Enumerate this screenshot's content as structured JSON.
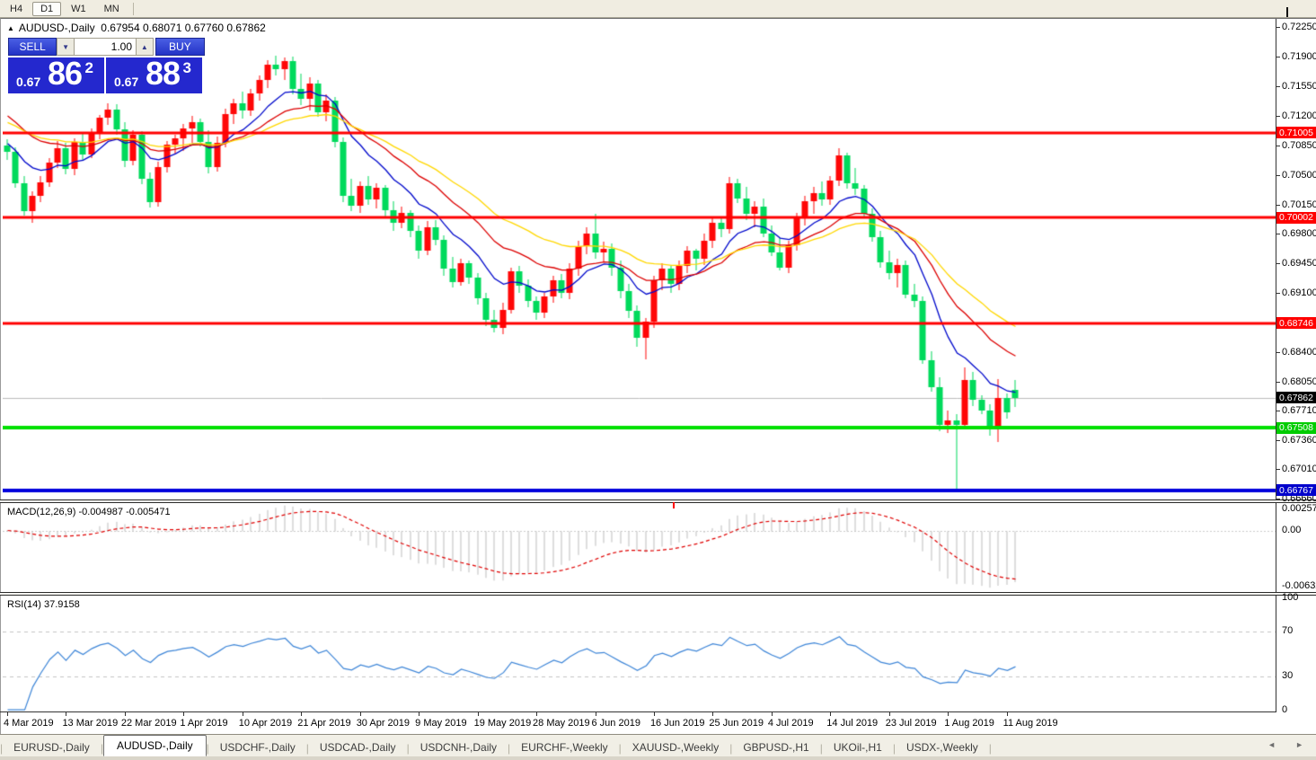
{
  "toolbar": {
    "timeframes": [
      "H4",
      "D1",
      "W1",
      "MN"
    ],
    "active": "D1"
  },
  "chart": {
    "symbol_marker": "▲",
    "title": "AUDUSD-,Daily",
    "ohlc_display": "0.67954 0.68071 0.67760 0.67862"
  },
  "one_click": {
    "sell_label": "SELL",
    "buy_label": "BUY",
    "volume": "1.00",
    "sell_price": {
      "small": "0.67",
      "big": "86",
      "sup": "2"
    },
    "buy_price": {
      "small": "0.67",
      "big": "88",
      "sup": "3"
    }
  },
  "icons": {
    "spin_up": "▲",
    "spin_down": "▼",
    "tab_scroll_left": "◄",
    "tab_scroll_right": "►"
  },
  "chart_data": {
    "type": "candlestick",
    "symbol": "AUDUSD",
    "timeframe": "Daily",
    "colors": {
      "up": "#ff0707",
      "down": "#00da5c",
      "ma_fast": "#0008cc",
      "ma_mid": "#dd0000",
      "ma_slow": "#ffd800"
    },
    "x_labels": [
      "4 Mar 2019",
      "13 Mar 2019",
      "22 Mar 2019",
      "1 Apr 2019",
      "10 Apr 2019",
      "21 Apr 2019",
      "30 Apr 2019",
      "9 May 2019",
      "19 May 2019",
      "28 May 2019",
      "6 Jun 2019",
      "16 Jun 2019",
      "25 Jun 2019",
      "4 Jul 2019",
      "14 Jul 2019",
      "23 Jul 2019",
      "1 Aug 2019",
      "11 Aug 2019"
    ],
    "label_every": 7,
    "candles": [
      [
        0.7085,
        0.7093,
        0.7068,
        0.7078
      ],
      [
        0.7078,
        0.7083,
        0.7035,
        0.7041
      ],
      [
        0.7041,
        0.7049,
        0.7002,
        0.7008
      ],
      [
        0.7008,
        0.7031,
        0.6994,
        0.7026
      ],
      [
        0.7026,
        0.7049,
        0.7018,
        0.7042
      ],
      [
        0.7042,
        0.7071,
        0.7036,
        0.7065
      ],
      [
        0.7065,
        0.7091,
        0.7059,
        0.7082
      ],
      [
        0.7082,
        0.7089,
        0.7051,
        0.7058
      ],
      [
        0.7058,
        0.7094,
        0.705,
        0.709
      ],
      [
        0.709,
        0.7099,
        0.7067,
        0.7075
      ],
      [
        0.7075,
        0.7106,
        0.707,
        0.71
      ],
      [
        0.71,
        0.7122,
        0.7093,
        0.7118
      ],
      [
        0.7118,
        0.7135,
        0.711,
        0.7128
      ],
      [
        0.7128,
        0.7134,
        0.7098,
        0.7105
      ],
      [
        0.7105,
        0.7113,
        0.706,
        0.7067
      ],
      [
        0.7067,
        0.7103,
        0.7062,
        0.7098
      ],
      [
        0.7098,
        0.7102,
        0.704,
        0.7046
      ],
      [
        0.7046,
        0.7054,
        0.7012,
        0.7018
      ],
      [
        0.7018,
        0.7066,
        0.7013,
        0.706
      ],
      [
        0.706,
        0.7091,
        0.7054,
        0.7086
      ],
      [
        0.7086,
        0.7098,
        0.7076,
        0.7094
      ],
      [
        0.7094,
        0.7111,
        0.7079,
        0.7106
      ],
      [
        0.7106,
        0.7121,
        0.7089,
        0.7113
      ],
      [
        0.7113,
        0.7117,
        0.7084,
        0.709
      ],
      [
        0.709,
        0.7104,
        0.7052,
        0.706
      ],
      [
        0.706,
        0.7096,
        0.7055,
        0.7089
      ],
      [
        0.7089,
        0.7129,
        0.7083,
        0.7123
      ],
      [
        0.7123,
        0.7141,
        0.7111,
        0.7136
      ],
      [
        0.7136,
        0.7149,
        0.7117,
        0.7127
      ],
      [
        0.7127,
        0.7153,
        0.7121,
        0.7147
      ],
      [
        0.7147,
        0.7169,
        0.7139,
        0.7163
      ],
      [
        0.7163,
        0.7187,
        0.7154,
        0.7181
      ],
      [
        0.7181,
        0.7192,
        0.7168,
        0.7176
      ],
      [
        0.7176,
        0.719,
        0.7163,
        0.7186
      ],
      [
        0.7186,
        0.7191,
        0.7146,
        0.7153
      ],
      [
        0.7153,
        0.7171,
        0.7133,
        0.7141
      ],
      [
        0.7141,
        0.7166,
        0.7127,
        0.7159
      ],
      [
        0.7159,
        0.7163,
        0.7119,
        0.7125
      ],
      [
        0.7125,
        0.7146,
        0.7114,
        0.7139
      ],
      [
        0.7139,
        0.7143,
        0.7083,
        0.709
      ],
      [
        0.709,
        0.7095,
        0.7018,
        0.7026
      ],
      [
        0.7026,
        0.7046,
        0.7008,
        0.7014
      ],
      [
        0.7014,
        0.7043,
        0.7006,
        0.7038
      ],
      [
        0.7038,
        0.7049,
        0.7015,
        0.7021
      ],
      [
        0.7021,
        0.7041,
        0.7011,
        0.7035
      ],
      [
        0.7035,
        0.7039,
        0.7001,
        0.7009
      ],
      [
        0.7009,
        0.7019,
        0.6984,
        0.6994
      ],
      [
        0.6994,
        0.7013,
        0.6987,
        0.7006
      ],
      [
        0.7006,
        0.7009,
        0.6977,
        0.6984
      ],
      [
        0.6984,
        0.6991,
        0.6951,
        0.6961
      ],
      [
        0.6961,
        0.6996,
        0.6956,
        0.6989
      ],
      [
        0.6989,
        0.6997,
        0.6967,
        0.6974
      ],
      [
        0.6974,
        0.6979,
        0.6931,
        0.6939
      ],
      [
        0.6939,
        0.6953,
        0.6917,
        0.6924
      ],
      [
        0.6924,
        0.6951,
        0.6919,
        0.6946
      ],
      [
        0.6946,
        0.6949,
        0.6921,
        0.6929
      ],
      [
        0.6929,
        0.6934,
        0.6897,
        0.6904
      ],
      [
        0.6904,
        0.6911,
        0.6871,
        0.6879
      ],
      [
        0.6879,
        0.6891,
        0.6864,
        0.6869
      ],
      [
        0.6869,
        0.6899,
        0.6862,
        0.6891
      ],
      [
        0.6891,
        0.6941,
        0.6886,
        0.6936
      ],
      [
        0.6936,
        0.6943,
        0.6911,
        0.6919
      ],
      [
        0.6919,
        0.6927,
        0.6894,
        0.6901
      ],
      [
        0.6901,
        0.6906,
        0.6879,
        0.6887
      ],
      [
        0.6887,
        0.6911,
        0.6881,
        0.6906
      ],
      [
        0.6906,
        0.6931,
        0.6899,
        0.6926
      ],
      [
        0.6926,
        0.6933,
        0.6904,
        0.6911
      ],
      [
        0.6911,
        0.6946,
        0.6903,
        0.6939
      ],
      [
        0.6939,
        0.6973,
        0.6931,
        0.6966
      ],
      [
        0.6966,
        0.6989,
        0.6957,
        0.6981
      ],
      [
        0.6981,
        0.7005,
        0.6951,
        0.6959
      ],
      [
        0.6959,
        0.6971,
        0.6947,
        0.6963
      ],
      [
        0.6963,
        0.6969,
        0.6931,
        0.6941
      ],
      [
        0.6941,
        0.6949,
        0.6904,
        0.6913
      ],
      [
        0.6913,
        0.6921,
        0.6881,
        0.6889
      ],
      [
        0.6889,
        0.6896,
        0.6847,
        0.6857
      ],
      [
        0.6857,
        0.6881,
        0.6832,
        0.6877
      ],
      [
        0.6877,
        0.6931,
        0.6869,
        0.6926
      ],
      [
        0.6926,
        0.6946,
        0.6914,
        0.6939
      ],
      [
        0.6939,
        0.6943,
        0.6911,
        0.6921
      ],
      [
        0.6921,
        0.6949,
        0.6914,
        0.6943
      ],
      [
        0.6943,
        0.6966,
        0.6934,
        0.6961
      ],
      [
        0.6961,
        0.6963,
        0.6937,
        0.6951
      ],
      [
        0.6951,
        0.6981,
        0.6944,
        0.6973
      ],
      [
        0.6973,
        0.6999,
        0.6964,
        0.6994
      ],
      [
        0.6994,
        0.7001,
        0.6977,
        0.6986
      ],
      [
        0.6986,
        0.7048,
        0.6981,
        0.7041
      ],
      [
        0.7041,
        0.7046,
        0.7017,
        0.7023
      ],
      [
        0.7023,
        0.7036,
        0.6997,
        0.7004
      ],
      [
        0.7004,
        0.7019,
        0.6989,
        0.7013
      ],
      [
        0.7013,
        0.7023,
        0.6977,
        0.6981
      ],
      [
        0.6981,
        0.6991,
        0.6954,
        0.6959
      ],
      [
        0.6959,
        0.6976,
        0.6937,
        0.6941
      ],
      [
        0.6941,
        0.6973,
        0.6934,
        0.6967
      ],
      [
        0.6967,
        0.7006,
        0.6961,
        0.6999
      ],
      [
        0.6999,
        0.7026,
        0.6991,
        0.7019
      ],
      [
        0.7019,
        0.7036,
        0.7004,
        0.7029
      ],
      [
        0.7029,
        0.7043,
        0.7014,
        0.7021
      ],
      [
        0.7021,
        0.7049,
        0.7015,
        0.7044
      ],
      [
        0.7044,
        0.7082,
        0.7037,
        0.7074
      ],
      [
        0.7074,
        0.7077,
        0.7034,
        0.7041
      ],
      [
        0.7041,
        0.7059,
        0.7027,
        0.7034
      ],
      [
        0.7034,
        0.7039,
        0.6999,
        0.7004
      ],
      [
        0.7004,
        0.7011,
        0.6971,
        0.6977
      ],
      [
        0.6977,
        0.6984,
        0.6941,
        0.6947
      ],
      [
        0.6947,
        0.6961,
        0.6927,
        0.6934
      ],
      [
        0.6934,
        0.6951,
        0.6917,
        0.6944
      ],
      [
        0.6944,
        0.6949,
        0.6904,
        0.6909
      ],
      [
        0.6909,
        0.6921,
        0.6894,
        0.6901
      ],
      [
        0.6901,
        0.6907,
        0.6827,
        0.6831
      ],
      [
        0.6831,
        0.6841,
        0.6794,
        0.6799
      ],
      [
        0.6799,
        0.6811,
        0.6747,
        0.6754
      ],
      [
        0.6754,
        0.6771,
        0.6745,
        0.6759
      ],
      [
        0.6759,
        0.6767,
        0.6677,
        0.6754
      ],
      [
        0.6754,
        0.6822,
        0.6749,
        0.6807
      ],
      [
        0.6807,
        0.6817,
        0.6777,
        0.6784
      ],
      [
        0.6784,
        0.6789,
        0.6767,
        0.6771
      ],
      [
        0.6771,
        0.6779,
        0.6741,
        0.6751
      ],
      [
        0.6751,
        0.6809,
        0.6734,
        0.6786
      ],
      [
        0.6786,
        0.6791,
        0.6762,
        0.6769
      ],
      [
        0.67954,
        0.68071,
        0.6776,
        0.67862
      ]
    ],
    "moving_averages": [
      {
        "period": 10,
        "color": "#0008cc",
        "seed": 0.709
      },
      {
        "period": 20,
        "color": "#dd0000",
        "seed": 0.7125
      },
      {
        "period": 32,
        "color": "#ffd800",
        "seed": 0.7115
      }
    ],
    "hlines": [
      {
        "price": 0.71005,
        "color": "#ff0000",
        "width": 3
      },
      {
        "price": 0.70002,
        "color": "#ff0000",
        "width": 3
      },
      {
        "price": 0.68746,
        "color": "#ff0000",
        "width": 3
      },
      {
        "price": 0.67508,
        "color": "#00e000",
        "width": 4
      },
      {
        "price": 0.66767,
        "color": "#0000dd",
        "width": 4
      }
    ],
    "current_price_line": {
      "price": 0.67862,
      "color": "#bdbdbd"
    },
    "price_axis": {
      "ticks": [
        "0.72250",
        "0.71900",
        "0.71550",
        "0.71200",
        "0.70850",
        "0.70500",
        "0.70150",
        "0.69800",
        "0.69450",
        "0.69100",
        "0.68400",
        "0.68050",
        "0.67710",
        "0.67360",
        "0.67010",
        "0.66660"
      ],
      "chips": [
        {
          "text": "0.71005",
          "bg": "#ff0000"
        },
        {
          "text": "0.70002",
          "bg": "#ff0000"
        },
        {
          "text": "0.68746",
          "bg": "#ff0000"
        },
        {
          "text": "0.67862",
          "bg": "#000000"
        },
        {
          "text": "0.67508",
          "bg": "#00cc00"
        },
        {
          "text": "0.66767",
          "bg": "#0000cc"
        }
      ]
    },
    "indicators": {
      "macd": {
        "label": "MACD(12,26,9) -0.004987 -0.005471",
        "value_main": -0.004987,
        "value_signal": -0.005471,
        "scale_labels": [
          "0.002574",
          "0.00",
          "-0.006326"
        ],
        "histogram_color": "#bdbdbd",
        "signal_color": "#e00000"
      },
      "rsi": {
        "label": "RSI(14) 37.9158",
        "value": 37.9158,
        "scale_labels": [
          "100",
          "70",
          "30",
          "0"
        ],
        "levels": [
          70,
          30
        ],
        "line_color": "#3e86d8"
      }
    }
  },
  "tabs": {
    "items": [
      "EURUSD-,Daily",
      "AUDUSD-,Daily",
      "USDCHF-,Daily",
      "USDCAD-,Daily",
      "USDCNH-,Daily",
      "EURCHF-,Weekly",
      "XAUUSD-,Weekly",
      "GBPUSD-,H1",
      "UKOil-,H1",
      "USDX-,Weekly"
    ],
    "active_index": 1
  }
}
